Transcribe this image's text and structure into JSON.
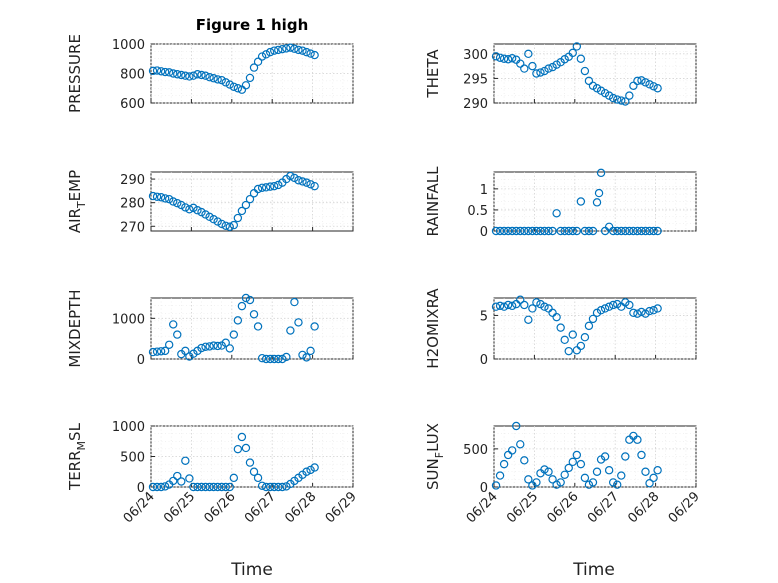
{
  "figure": {
    "title": "Figure 1 high",
    "marker_color": "#0072bd",
    "date_ticks": [
      "06/24",
      "06/25",
      "06/26",
      "06/27",
      "06/28",
      "06/29"
    ],
    "xlabel": "Time"
  },
  "chart_data": [
    {
      "type": "scatter",
      "panel": "top-left",
      "ylabel": "PRESSURE",
      "ylim": [
        600,
        1000
      ],
      "yticks": [
        600,
        800,
        1000
      ],
      "grid": "on",
      "x_unit": "days since 06/24",
      "y_values": [
        [
          0.05,
          818
        ],
        [
          0.15,
          820
        ],
        [
          0.25,
          815
        ],
        [
          0.35,
          810
        ],
        [
          0.45,
          808
        ],
        [
          0.55,
          800
        ],
        [
          0.65,
          795
        ],
        [
          0.75,
          790
        ],
        [
          0.85,
          785
        ],
        [
          0.95,
          780
        ],
        [
          1.05,
          785
        ],
        [
          1.15,
          795
        ],
        [
          1.25,
          790
        ],
        [
          1.35,
          785
        ],
        [
          1.45,
          775
        ],
        [
          1.55,
          768
        ],
        [
          1.65,
          760
        ],
        [
          1.75,
          755
        ],
        [
          1.85,
          740
        ],
        [
          1.95,
          725
        ],
        [
          2.05,
          710
        ],
        [
          2.15,
          700
        ],
        [
          2.25,
          690
        ],
        [
          2.35,
          720
        ],
        [
          2.45,
          770
        ],
        [
          2.55,
          840
        ],
        [
          2.65,
          880
        ],
        [
          2.75,
          915
        ],
        [
          2.85,
          930
        ],
        [
          2.95,
          945
        ],
        [
          3.05,
          955
        ],
        [
          3.15,
          960
        ],
        [
          3.25,
          965
        ],
        [
          3.35,
          970
        ],
        [
          3.45,
          975
        ],
        [
          3.55,
          968
        ],
        [
          3.65,
          960
        ],
        [
          3.75,
          955
        ],
        [
          3.85,
          945
        ],
        [
          3.95,
          935
        ],
        [
          4.05,
          925
        ]
      ]
    },
    {
      "type": "scatter",
      "panel": "top-right",
      "ylabel": "THETA",
      "ylim": [
        290,
        302
      ],
      "yticks": [
        290,
        295,
        300
      ],
      "grid": "on",
      "y_values": [
        [
          0.05,
          299.5
        ],
        [
          0.15,
          299.2
        ],
        [
          0.25,
          299.0
        ],
        [
          0.35,
          298.9
        ],
        [
          0.45,
          299.1
        ],
        [
          0.55,
          298.8
        ],
        [
          0.65,
          298.0
        ],
        [
          0.75,
          297.0
        ],
        [
          0.85,
          300.0
        ],
        [
          0.95,
          297.5
        ],
        [
          1.05,
          296.0
        ],
        [
          1.15,
          296.2
        ],
        [
          1.25,
          296.5
        ],
        [
          1.35,
          297.0
        ],
        [
          1.45,
          297.3
        ],
        [
          1.55,
          297.8
        ],
        [
          1.65,
          298.3
        ],
        [
          1.75,
          298.9
        ],
        [
          1.85,
          299.4
        ],
        [
          1.95,
          300.2
        ],
        [
          2.05,
          301.5
        ],
        [
          2.15,
          299.0
        ],
        [
          2.25,
          296.5
        ],
        [
          2.35,
          294.5
        ],
        [
          2.45,
          293.5
        ],
        [
          2.55,
          293.0
        ],
        [
          2.65,
          292.5
        ],
        [
          2.75,
          292.0
        ],
        [
          2.85,
          291.5
        ],
        [
          2.95,
          291.0
        ],
        [
          3.05,
          290.7
        ],
        [
          3.15,
          290.5
        ],
        [
          3.25,
          290.3
        ],
        [
          3.35,
          291.5
        ],
        [
          3.45,
          293.5
        ],
        [
          3.55,
          294.5
        ],
        [
          3.65,
          294.6
        ],
        [
          3.75,
          294.2
        ],
        [
          3.85,
          293.8
        ],
        [
          3.95,
          293.4
        ],
        [
          4.05,
          293.0
        ]
      ]
    },
    {
      "type": "scatter",
      "panel": "row2-left",
      "ylabel": "AIR",
      "ylabel_sub": "T",
      "ylabel_tail": "EMP",
      "ylim": [
        268,
        293
      ],
      "yticks": [
        270,
        280,
        290
      ],
      "grid": "on",
      "y_values": [
        [
          0.05,
          282.8
        ],
        [
          0.15,
          282.5
        ],
        [
          0.25,
          282.3
        ],
        [
          0.35,
          281.8
        ],
        [
          0.45,
          281.5
        ],
        [
          0.55,
          280.5
        ],
        [
          0.65,
          279.8
        ],
        [
          0.75,
          279.0
        ],
        [
          0.85,
          278.0
        ],
        [
          0.95,
          277.2
        ],
        [
          1.05,
          277.8
        ],
        [
          1.15,
          276.8
        ],
        [
          1.25,
          276.0
        ],
        [
          1.35,
          275.0
        ],
        [
          1.45,
          274.0
        ],
        [
          1.55,
          273.0
        ],
        [
          1.65,
          272.0
        ],
        [
          1.75,
          271.0
        ],
        [
          1.85,
          270.2
        ],
        [
          1.95,
          269.8
        ],
        [
          2.05,
          270.5
        ],
        [
          2.15,
          273.5
        ],
        [
          2.25,
          276.5
        ],
        [
          2.35,
          279.0
        ],
        [
          2.45,
          281.5
        ],
        [
          2.55,
          284.0
        ],
        [
          2.65,
          285.8
        ],
        [
          2.75,
          286.3
        ],
        [
          2.85,
          286.5
        ],
        [
          2.95,
          286.8
        ],
        [
          3.05,
          287.0
        ],
        [
          3.15,
          287.5
        ],
        [
          3.25,
          288.5
        ],
        [
          3.35,
          290.0
        ],
        [
          3.45,
          291.3
        ],
        [
          3.55,
          290.5
        ],
        [
          3.65,
          289.5
        ],
        [
          3.75,
          289.0
        ],
        [
          3.85,
          288.5
        ],
        [
          3.95,
          287.8
        ],
        [
          4.05,
          287.0
        ]
      ]
    },
    {
      "type": "scatter",
      "panel": "row2-right",
      "ylabel": "RAINFALL",
      "ylim": [
        0,
        1.4
      ],
      "yticks": [
        0,
        0.5,
        1
      ],
      "grid": "on",
      "y_values": [
        [
          0.05,
          0
        ],
        [
          0.15,
          0
        ],
        [
          0.25,
          0
        ],
        [
          0.35,
          0
        ],
        [
          0.45,
          0
        ],
        [
          0.55,
          0
        ],
        [
          0.65,
          0
        ],
        [
          0.75,
          0
        ],
        [
          0.85,
          0
        ],
        [
          0.95,
          0
        ],
        [
          1.05,
          0
        ],
        [
          1.15,
          0
        ],
        [
          1.25,
          0
        ],
        [
          1.35,
          0
        ],
        [
          1.45,
          0
        ],
        [
          1.55,
          0.42
        ],
        [
          1.65,
          0
        ],
        [
          1.75,
          0
        ],
        [
          1.85,
          0
        ],
        [
          1.95,
          0
        ],
        [
          2.05,
          0
        ],
        [
          2.15,
          0.7
        ],
        [
          2.25,
          0
        ],
        [
          2.35,
          0
        ],
        [
          2.45,
          0
        ],
        [
          2.55,
          0.68
        ],
        [
          2.6,
          0.9
        ],
        [
          2.65,
          1.38
        ],
        [
          2.75,
          0
        ],
        [
          2.85,
          0.1
        ],
        [
          2.95,
          0
        ],
        [
          3.05,
          0
        ],
        [
          3.15,
          0
        ],
        [
          3.25,
          0
        ],
        [
          3.35,
          0
        ],
        [
          3.45,
          0
        ],
        [
          3.55,
          0
        ],
        [
          3.65,
          0
        ],
        [
          3.75,
          0
        ],
        [
          3.85,
          0
        ],
        [
          3.95,
          0
        ],
        [
          4.05,
          0
        ]
      ]
    },
    {
      "type": "scatter",
      "panel": "row3-left",
      "ylabel": "MIXDEPTH",
      "ylim": [
        0,
        1500
      ],
      "yticks": [
        0,
        1000
      ],
      "grid": "on",
      "y_values": [
        [
          0.05,
          170
        ],
        [
          0.15,
          180
        ],
        [
          0.25,
          190
        ],
        [
          0.35,
          200
        ],
        [
          0.45,
          350
        ],
        [
          0.55,
          850
        ],
        [
          0.65,
          600
        ],
        [
          0.75,
          120
        ],
        [
          0.85,
          200
        ],
        [
          0.95,
          60
        ],
        [
          1.05,
          130
        ],
        [
          1.15,
          200
        ],
        [
          1.25,
          270
        ],
        [
          1.35,
          300
        ],
        [
          1.45,
          310
        ],
        [
          1.55,
          330
        ],
        [
          1.65,
          320
        ],
        [
          1.75,
          330
        ],
        [
          1.85,
          400
        ],
        [
          1.95,
          260
        ],
        [
          2.05,
          600
        ],
        [
          2.15,
          950
        ],
        [
          2.25,
          1300
        ],
        [
          2.35,
          1550
        ],
        [
          2.45,
          1450
        ],
        [
          2.55,
          1100
        ],
        [
          2.65,
          800
        ],
        [
          2.75,
          20
        ],
        [
          2.85,
          0
        ],
        [
          2.95,
          0
        ],
        [
          3.05,
          0
        ],
        [
          3.15,
          0
        ],
        [
          3.25,
          0
        ],
        [
          3.35,
          50
        ],
        [
          3.45,
          700
        ],
        [
          3.55,
          1400
        ],
        [
          3.65,
          900
        ],
        [
          3.75,
          100
        ],
        [
          3.85,
          40
        ],
        [
          3.95,
          200
        ],
        [
          4.05,
          800
        ]
      ]
    },
    {
      "type": "scatter",
      "panel": "row3-right",
      "ylabel": "H2OMIXRA",
      "ylim": [
        0,
        7
      ],
      "yticks": [
        0,
        5
      ],
      "grid": "on",
      "y_values": [
        [
          0.05,
          6.0
        ],
        [
          0.15,
          6.1
        ],
        [
          0.25,
          6.0
        ],
        [
          0.35,
          6.2
        ],
        [
          0.45,
          6.1
        ],
        [
          0.55,
          6.3
        ],
        [
          0.65,
          6.8
        ],
        [
          0.75,
          6.2
        ],
        [
          0.85,
          4.5
        ],
        [
          0.95,
          5.8
        ],
        [
          1.05,
          6.5
        ],
        [
          1.15,
          6.3
        ],
        [
          1.25,
          6.0
        ],
        [
          1.35,
          5.8
        ],
        [
          1.45,
          5.3
        ],
        [
          1.55,
          4.8
        ],
        [
          1.65,
          3.6
        ],
        [
          1.75,
          2.2
        ],
        [
          1.85,
          0.9
        ],
        [
          1.95,
          2.8
        ],
        [
          2.05,
          1.0
        ],
        [
          2.15,
          1.5
        ],
        [
          2.25,
          2.5
        ],
        [
          2.35,
          3.8
        ],
        [
          2.45,
          4.6
        ],
        [
          2.55,
          5.3
        ],
        [
          2.65,
          5.6
        ],
        [
          2.75,
          5.8
        ],
        [
          2.85,
          6.0
        ],
        [
          2.95,
          6.2
        ],
        [
          3.05,
          6.3
        ],
        [
          3.15,
          6.0
        ],
        [
          3.25,
          6.5
        ],
        [
          3.35,
          6.2
        ],
        [
          3.45,
          5.3
        ],
        [
          3.55,
          5.2
        ],
        [
          3.65,
          5.4
        ],
        [
          3.75,
          5.2
        ],
        [
          3.85,
          5.5
        ],
        [
          3.95,
          5.6
        ],
        [
          4.05,
          5.8
        ]
      ]
    },
    {
      "type": "scatter",
      "panel": "bottom-left",
      "ylabel": "TERR",
      "ylabel_sub": "M",
      "ylabel_tail": "SL",
      "ylim": [
        0,
        1000
      ],
      "yticks": [
        0,
        500,
        1000
      ],
      "grid": "on",
      "y_values": [
        [
          0.05,
          0
        ],
        [
          0.15,
          0
        ],
        [
          0.25,
          0
        ],
        [
          0.35,
          10
        ],
        [
          0.45,
          40
        ],
        [
          0.55,
          100
        ],
        [
          0.65,
          180
        ],
        [
          0.75,
          90
        ],
        [
          0.85,
          430
        ],
        [
          0.95,
          140
        ],
        [
          1.05,
          0
        ],
        [
          1.15,
          0
        ],
        [
          1.25,
          0
        ],
        [
          1.35,
          0
        ],
        [
          1.45,
          0
        ],
        [
          1.55,
          0
        ],
        [
          1.65,
          0
        ],
        [
          1.75,
          0
        ],
        [
          1.85,
          0
        ],
        [
          1.95,
          0
        ],
        [
          2.05,
          150
        ],
        [
          2.15,
          620
        ],
        [
          2.25,
          820
        ],
        [
          2.35,
          640
        ],
        [
          2.45,
          400
        ],
        [
          2.55,
          250
        ],
        [
          2.65,
          150
        ],
        [
          2.75,
          20
        ],
        [
          2.85,
          0
        ],
        [
          2.95,
          0
        ],
        [
          3.05,
          0
        ],
        [
          3.15,
          0
        ],
        [
          3.25,
          0
        ],
        [
          3.35,
          10
        ],
        [
          3.45,
          50
        ],
        [
          3.55,
          100
        ],
        [
          3.65,
          150
        ],
        [
          3.75,
          200
        ],
        [
          3.85,
          250
        ],
        [
          3.95,
          280
        ],
        [
          4.05,
          320
        ]
      ]
    },
    {
      "type": "scatter",
      "panel": "bottom-right",
      "ylabel": "SUN",
      "ylabel_sub": "F",
      "ylabel_tail": "LUX",
      "ylim": [
        0,
        800
      ],
      "yticks": [
        0,
        500
      ],
      "grid": "on",
      "y_values": [
        [
          0.05,
          20
        ],
        [
          0.15,
          150
        ],
        [
          0.25,
          300
        ],
        [
          0.35,
          420
        ],
        [
          0.45,
          480
        ],
        [
          0.55,
          800
        ],
        [
          0.65,
          560
        ],
        [
          0.75,
          350
        ],
        [
          0.85,
          100
        ],
        [
          0.95,
          20
        ],
        [
          1.05,
          60
        ],
        [
          1.15,
          180
        ],
        [
          1.25,
          230
        ],
        [
          1.35,
          200
        ],
        [
          1.45,
          100
        ],
        [
          1.55,
          30
        ],
        [
          1.65,
          60
        ],
        [
          1.75,
          160
        ],
        [
          1.85,
          250
        ],
        [
          1.95,
          330
        ],
        [
          2.05,
          420
        ],
        [
          2.15,
          300
        ],
        [
          2.25,
          120
        ],
        [
          2.35,
          30
        ],
        [
          2.45,
          60
        ],
        [
          2.55,
          200
        ],
        [
          2.65,
          360
        ],
        [
          2.75,
          400
        ],
        [
          2.85,
          220
        ],
        [
          2.95,
          60
        ],
        [
          3.05,
          30
        ],
        [
          3.15,
          150
        ],
        [
          3.25,
          400
        ],
        [
          3.35,
          620
        ],
        [
          3.45,
          670
        ],
        [
          3.55,
          620
        ],
        [
          3.65,
          420
        ],
        [
          3.75,
          200
        ],
        [
          3.85,
          50
        ],
        [
          3.95,
          120
        ],
        [
          4.05,
          220
        ]
      ]
    }
  ]
}
